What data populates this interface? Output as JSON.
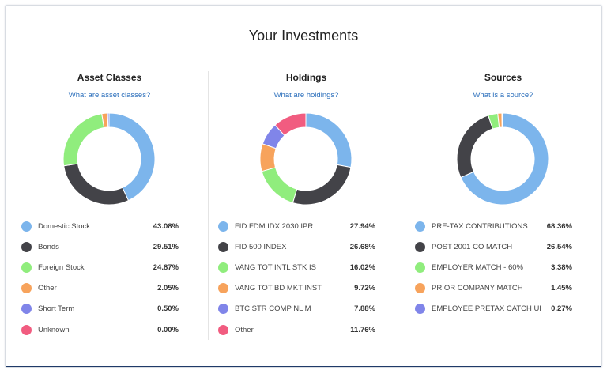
{
  "title": "Your Investments",
  "colors": [
    "#7cb5ec",
    "#434348",
    "#90ed7d",
    "#f7a35c",
    "#8085e9",
    "#f15c80"
  ],
  "sections": [
    {
      "heading": "Asset Classes",
      "link": "What are asset classes?",
      "items": [
        {
          "label": "Domestic Stock",
          "value": "43.08%",
          "pct": 43.08
        },
        {
          "label": "Bonds",
          "value": "29.51%",
          "pct": 29.51
        },
        {
          "label": "Foreign Stock",
          "value": "24.87%",
          "pct": 24.87
        },
        {
          "label": "Other",
          "value": "2.05%",
          "pct": 2.05
        },
        {
          "label": "Short Term",
          "value": "0.50%",
          "pct": 0.5
        },
        {
          "label": "Unknown",
          "value": "0.00%",
          "pct": 0.0
        }
      ]
    },
    {
      "heading": "Holdings",
      "link": "What are holdings?",
      "items": [
        {
          "label": "FID FDM IDX 2030 IPR",
          "value": "27.94%",
          "pct": 27.94
        },
        {
          "label": "FID 500 INDEX",
          "value": "26.68%",
          "pct": 26.68
        },
        {
          "label": "VANG TOT INTL STK IS",
          "value": "16.02%",
          "pct": 16.02
        },
        {
          "label": "VANG TOT BD MKT INST",
          "value": "9.72%",
          "pct": 9.72
        },
        {
          "label": "BTC STR COMP NL M",
          "value": "7.88%",
          "pct": 7.88
        },
        {
          "label": "Other",
          "value": "11.76%",
          "pct": 11.76
        }
      ]
    },
    {
      "heading": "Sources",
      "link": "What is a source?",
      "items": [
        {
          "label": "PRE-TAX CONTRIBUTIONS",
          "value": "68.36%",
          "pct": 68.36
        },
        {
          "label": "POST 2001 CO MATCH",
          "value": "26.54%",
          "pct": 26.54
        },
        {
          "label": "EMPLOYER MATCH - 60%",
          "value": "3.38%",
          "pct": 3.38
        },
        {
          "label": "PRIOR COMPANY MATCH",
          "value": "1.45%",
          "pct": 1.45
        },
        {
          "label": "EMPLOYEE PRETAX CATCH UP",
          "value": "0.27%",
          "pct": 0.27
        }
      ]
    }
  ]
}
